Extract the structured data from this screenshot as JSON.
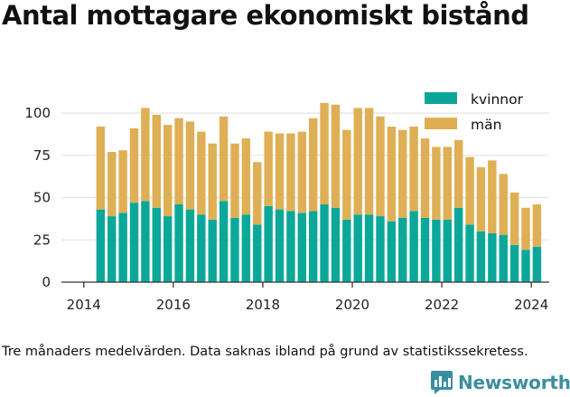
{
  "title": "Antal mottagare ekonomiskt bistånd",
  "footnote": "Tre månaders medelvärden. Data saknas ibland på grund av statistikssekretess.",
  "brand": {
    "name": "Newsworthy",
    "icon": "bar-chart-chat-icon"
  },
  "colors": {
    "kvinnor": "#0ba89a",
    "man": "#deaf55",
    "grid": "#e6e6e6",
    "axis": "#333333",
    "brand": "#3b8ea0"
  },
  "chart_data": {
    "type": "bar",
    "stacked": true,
    "title": "Antal mottagare ekonomiskt bistånd",
    "xlabel": "",
    "ylabel": "",
    "ylim": [
      0,
      115
    ],
    "yticks": [
      0,
      25,
      50,
      75,
      100
    ],
    "xlim": [
      2013.5,
      2024.4
    ],
    "xticks": [
      2014,
      2016,
      2018,
      2020,
      2022,
      2024
    ],
    "grid": true,
    "legend_position": "top-right",
    "x": [
      2014.375,
      2014.625,
      2014.875,
      2015.125,
      2015.375,
      2015.625,
      2015.875,
      2016.125,
      2016.375,
      2016.625,
      2016.875,
      2017.125,
      2017.375,
      2017.625,
      2017.875,
      2018.125,
      2018.375,
      2018.625,
      2018.875,
      2019.125,
      2019.375,
      2019.625,
      2019.875,
      2020.125,
      2020.375,
      2020.625,
      2020.875,
      2021.125,
      2021.375,
      2021.625,
      2021.875,
      2022.125,
      2022.375,
      2022.625,
      2022.875,
      2023.125,
      2023.375,
      2023.625,
      2023.875,
      2024.125
    ],
    "series": [
      {
        "name": "kvinnor",
        "values": [
          43,
          39,
          41,
          47,
          48,
          44,
          39,
          46,
          43,
          40,
          37,
          48,
          38,
          40,
          34,
          45,
          43,
          42,
          41,
          42,
          46,
          44,
          37,
          40,
          40,
          39,
          36,
          38,
          42,
          38,
          37,
          37,
          44,
          34,
          30,
          29,
          28,
          22,
          19,
          21
        ]
      },
      {
        "name": "män",
        "values": [
          49,
          38,
          37,
          44,
          55,
          55,
          54,
          51,
          52,
          49,
          45,
          50,
          44,
          45,
          37,
          44,
          45,
          46,
          48,
          55,
          60,
          61,
          53,
          63,
          63,
          59,
          56,
          52,
          50,
          47,
          43,
          43,
          40,
          40,
          38,
          43,
          36,
          31,
          25,
          25
        ]
      }
    ]
  }
}
